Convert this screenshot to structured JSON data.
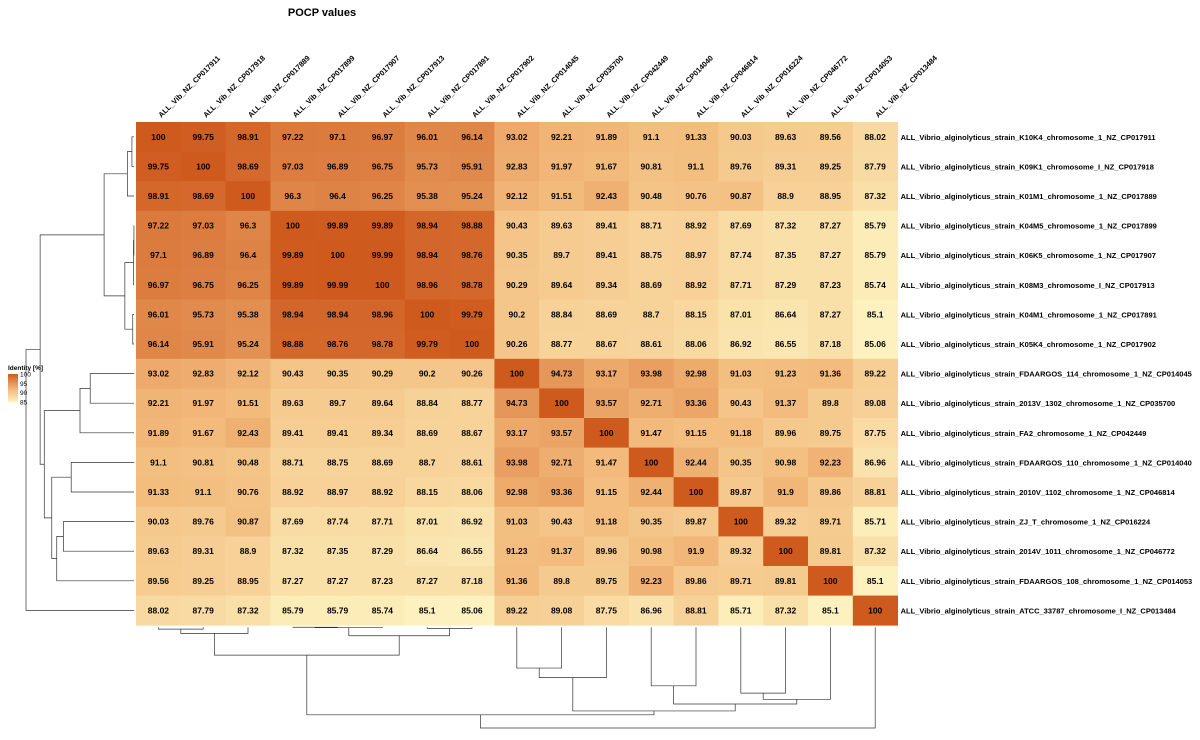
{
  "chart_data": {
    "type": "heatmap",
    "title": "POCP values",
    "legend": {
      "title": "Identity [%]",
      "ticks": [
        100,
        95,
        90,
        85
      ],
      "range": [
        85,
        100
      ],
      "color_low": "#fdf3c0",
      "color_high": "#cf5a1e"
    },
    "columns": [
      "ALL_Vib_NZ_CP017911",
      "ALL_Vib_NZ_CP017918",
      "ALL_Vib_NZ_CP017889",
      "ALL_Vib_NZ_CP017899",
      "ALL_Vib_NZ_CP017907",
      "ALL_Vib_NZ_CP017913",
      "ALL_Vib_NZ_CP017891",
      "ALL_Vib_NZ_CP017902",
      "ALL_Vib_NZ_CP014045",
      "ALL_Vib_NZ_CP035700",
      "ALL_Vib_NZ_CP042449",
      "ALL_Vib_NZ_CP014040",
      "ALL_Vib_NZ_CP046814",
      "ALL_Vib_NZ_CP016224",
      "ALL_Vib_NZ_CP046772",
      "ALL_Vib_NZ_CP014053",
      "ALL_Vib_NZ_CP013484"
    ],
    "rows": [
      "ALL_Vibrio_alginolyticus_strain_K10K4_chromosome_1_NZ_CP017911",
      "ALL_Vibrio_alginolyticus_strain_K09K1_chromosome_I_NZ_CP017918",
      "ALL_Vibrio_alginolyticus_strain_K01M1_chromosome_1_NZ_CP017889",
      "ALL_Vibrio_alginolyticus_strain_K04M5_chromosome_1_NZ_CP017899",
      "ALL_Vibrio_alginolyticus_strain_K06K5_chromosome_1_NZ_CP017907",
      "ALL_Vibrio_alginolyticus_strain_K08M3_chromosome_I_NZ_CP017913",
      "ALL_Vibrio_alginolyticus_strain_K04M1_chromosome_1_NZ_CP017891",
      "ALL_Vibrio_alginolyticus_strain_K05K4_chromosome_1_NZ_CP017902",
      "ALL_Vibrio_alginolyticus_strain_FDAARGOS_114_chromosome_1_NZ_CP014045",
      "ALL_Vibrio_alginolyticus_strain_2013V_1302_chromosome_1_NZ_CP035700",
      "ALL_Vibrio_alginolyticus_strain_FA2_chromosome_1_NZ_CP042449",
      "ALL_Vibrio_alginolyticus_strain_FDAARGOS_110_chromosome_1_NZ_CP014040",
      "ALL_Vibrio_alginolyticus_strain_2010V_1102_chromosome_1_NZ_CP046814",
      "ALL_Vibrio_alginolyticus_strain_ZJ_T_chromosome_1_NZ_CP016224",
      "ALL_Vibrio_alginolyticus_strain_2014V_1011_chromosome_1_NZ_CP046772",
      "ALL_Vibrio_alginolyticus_strain_FDAARGOS_108_chromosome_1_NZ_CP014053",
      "ALL_Vibrio_alginolyticus_strain_ATCC_33787_chromosome_I_NZ_CP013484"
    ],
    "values": [
      [
        100,
        99.75,
        98.91,
        97.22,
        97.1,
        96.97,
        96.01,
        96.14,
        93.02,
        92.21,
        91.89,
        91.1,
        91.33,
        90.03,
        89.63,
        89.56,
        88.02
      ],
      [
        99.75,
        100,
        98.69,
        97.03,
        96.89,
        96.75,
        95.73,
        95.91,
        92.83,
        91.97,
        91.67,
        90.81,
        91.1,
        89.76,
        89.31,
        89.25,
        87.79
      ],
      [
        98.91,
        98.69,
        100,
        96.3,
        96.4,
        96.25,
        95.38,
        95.24,
        92.12,
        91.51,
        92.43,
        90.48,
        90.76,
        90.87,
        88.9,
        88.95,
        87.32
      ],
      [
        97.22,
        97.03,
        96.3,
        100,
        99.89,
        99.89,
        98.94,
        98.88,
        90.43,
        89.63,
        89.41,
        88.71,
        88.92,
        87.69,
        87.32,
        87.27,
        85.79
      ],
      [
        97.1,
        96.89,
        96.4,
        99.89,
        100,
        99.99,
        98.94,
        98.76,
        90.35,
        89.7,
        89.41,
        88.75,
        88.97,
        87.74,
        87.35,
        87.27,
        85.79
      ],
      [
        96.97,
        96.75,
        96.25,
        99.89,
        99.99,
        100,
        98.96,
        98.78,
        90.29,
        89.64,
        89.34,
        88.69,
        88.92,
        87.71,
        87.29,
        87.23,
        85.74
      ],
      [
        96.01,
        95.73,
        95.38,
        98.94,
        98.94,
        98.96,
        100,
        99.79,
        90.2,
        88.84,
        88.69,
        88.7,
        88.15,
        87.01,
        86.64,
        87.27,
        85.1
      ],
      [
        96.14,
        95.91,
        95.24,
        98.88,
        98.76,
        98.78,
        99.79,
        100,
        90.26,
        88.77,
        88.67,
        88.61,
        88.06,
        86.92,
        86.55,
        87.18,
        85.06
      ],
      [
        93.02,
        92.83,
        92.12,
        90.43,
        90.35,
        90.29,
        90.2,
        90.26,
        100,
        94.73,
        93.17,
        93.98,
        92.98,
        91.03,
        91.23,
        91.36,
        89.22
      ],
      [
        92.21,
        91.97,
        91.51,
        89.63,
        89.7,
        89.64,
        88.84,
        88.77,
        94.73,
        100,
        93.57,
        92.71,
        93.36,
        90.43,
        91.37,
        89.8,
        89.08
      ],
      [
        91.89,
        91.67,
        92.43,
        89.41,
        89.41,
        89.34,
        88.69,
        88.67,
        93.17,
        93.57,
        100,
        91.47,
        91.15,
        91.18,
        89.96,
        89.75,
        87.75
      ],
      [
        91.1,
        90.81,
        90.48,
        88.71,
        88.75,
        88.69,
        88.7,
        88.61,
        93.98,
        92.71,
        91.47,
        100,
        92.44,
        90.35,
        90.98,
        92.23,
        86.96
      ],
      [
        91.33,
        91.1,
        90.76,
        88.92,
        88.97,
        88.92,
        88.15,
        88.06,
        92.98,
        93.36,
        91.15,
        92.44,
        100,
        89.87,
        91.9,
        89.86,
        88.81
      ],
      [
        90.03,
        89.76,
        90.87,
        87.69,
        87.74,
        87.71,
        87.01,
        86.92,
        91.03,
        90.43,
        91.18,
        90.35,
        89.87,
        100,
        89.32,
        89.71,
        85.71
      ],
      [
        89.63,
        89.31,
        88.9,
        87.32,
        87.35,
        87.29,
        86.64,
        86.55,
        91.23,
        91.37,
        89.96,
        90.98,
        91.9,
        89.32,
        100,
        89.81,
        87.32
      ],
      [
        89.56,
        89.25,
        88.95,
        87.27,
        87.27,
        87.23,
        87.27,
        87.18,
        91.36,
        89.8,
        89.75,
        92.23,
        89.86,
        89.71,
        89.81,
        100,
        85.1
      ],
      [
        88.02,
        87.79,
        87.32,
        85.79,
        85.79,
        85.74,
        85.1,
        85.06,
        89.22,
        89.08,
        87.75,
        86.96,
        88.81,
        85.71,
        87.32,
        85.1,
        100
      ]
    ],
    "dendrogram": {
      "leaf_order": [
        0,
        1,
        2,
        3,
        4,
        5,
        6,
        7,
        8,
        9,
        10,
        11,
        12,
        13,
        14,
        15,
        16
      ],
      "merges": [
        [
          3,
          4,
          0.01
        ],
        [
          5,
          17,
          0.06
        ],
        [
          6,
          7,
          0.15
        ],
        [
          0,
          1,
          0.25
        ],
        [
          2,
          20,
          0.8
        ],
        [
          18,
          19,
          1.1
        ],
        [
          21,
          22,
          3.6
        ],
        [
          8,
          9,
          5.27
        ],
        [
          10,
          24,
          6.5
        ],
        [
          11,
          12,
          7.56
        ],
        [
          13,
          14,
          8.5
        ],
        [
          15,
          27,
          9.3
        ],
        [
          26,
          28,
          9.9
        ],
        [
          25,
          29,
          10.8
        ],
        [
          23,
          30,
          11.3
        ],
        [
          16,
          31,
          13.0
        ]
      ]
    }
  }
}
